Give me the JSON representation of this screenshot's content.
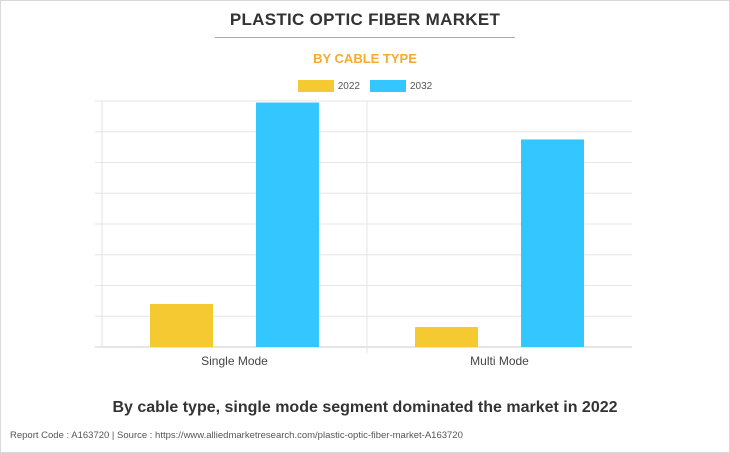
{
  "title": "PLASTIC OPTIC FIBER MARKET",
  "subtitle": "BY CABLE TYPE",
  "caption": "By cable type, single mode segment dominated the market in 2022",
  "footer": "Report Code : A163720  |  Source : https://www.alliedmarketresearch.com/plastic-optic-fiber-market-A163720",
  "colors": {
    "2022": "#f5c932",
    "2032": "#33c6ff",
    "subtitle": "#f5ab30"
  },
  "chart_data": {
    "type": "bar",
    "title": "PLASTIC OPTIC FIBER MARKET",
    "subtitle": "BY CABLE TYPE",
    "categories": [
      "Single Mode",
      "Multi Mode"
    ],
    "series": [
      {
        "name": "2022",
        "values": [
          14,
          6.5
        ]
      },
      {
        "name": "2032",
        "values": [
          79.5,
          67.5
        ]
      }
    ],
    "ylim": [
      0,
      80
    ],
    "y_tick_labels_shown": false,
    "grid": true,
    "legend": "top-center"
  }
}
